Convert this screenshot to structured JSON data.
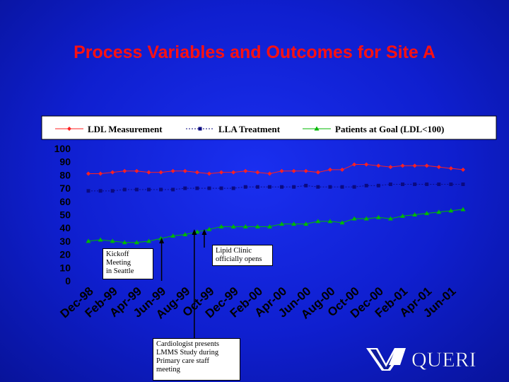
{
  "slide": {
    "title": "Process Variables and Outcomes for Site A"
  },
  "annotations": {
    "kickoff": "Kickoff\nMeeting\nin Seattle",
    "lipid": "Lipid Clinic\nofficially opens",
    "cardiologist": "Cardiologist presents\nLMMS Study during\nPrimary care staff\nmeeting"
  },
  "logo": {
    "text": "QUERI",
    "colors": {
      "blue": "#0e1d9c",
      "white": "#ffffff"
    }
  },
  "colors": {
    "background": "#0f1fcf",
    "title": "#ff1010",
    "ldl_measurement": "#ff2020",
    "lla_treatment": "#0a0a80",
    "patients_at_goal": "#00b800",
    "axis_text": "#000000",
    "legend_bg": "#ffffff"
  },
  "chart_data": {
    "type": "line",
    "title": "",
    "xlabel": "",
    "ylabel": "",
    "ylim": [
      0,
      100
    ],
    "yticks": [
      0,
      10,
      20,
      30,
      40,
      50,
      60,
      70,
      80,
      90,
      100
    ],
    "grid": false,
    "legend": "top",
    "x_tick_labels": [
      "Dec-98",
      "Feb-99",
      "Apr-99",
      "Jun-99",
      "Aug-99",
      "Oct-99",
      "Dec-99",
      "Feb-00",
      "Apr-00",
      "Jun-00",
      "Aug-00",
      "Oct-00",
      "Dec-00",
      "Feb-01",
      "Apr-01",
      "Jun-01"
    ],
    "points_per_tick": 2,
    "series": [
      {
        "name": "LDL Measurement",
        "marker": "diamond",
        "values": [
          81,
          81,
          82,
          83,
          83,
          82,
          82,
          83,
          83,
          82,
          81,
          82,
          82,
          83,
          82,
          81,
          83,
          83,
          83,
          82,
          84,
          84,
          88,
          88,
          87,
          86,
          87,
          87,
          87,
          86,
          85,
          84
        ]
      },
      {
        "name": "LLA Treatment",
        "marker": "square",
        "values": [
          68,
          68,
          68,
          69,
          69,
          69,
          69,
          69,
          70,
          70,
          70,
          70,
          70,
          71,
          71,
          71,
          71,
          71,
          72,
          71,
          71,
          71,
          71,
          72,
          72,
          73,
          73,
          73,
          73,
          73,
          73,
          73
        ]
      },
      {
        "name": "Patients at Goal (LDL<100)",
        "marker": "triangle",
        "values": [
          30,
          31,
          30,
          29,
          29,
          30,
          32,
          34,
          35,
          37,
          39,
          41,
          41,
          41,
          41,
          41,
          43,
          43,
          43,
          45,
          45,
          44,
          47,
          47,
          48,
          47,
          49,
          50,
          51,
          52,
          53,
          54
        ]
      }
    ]
  }
}
